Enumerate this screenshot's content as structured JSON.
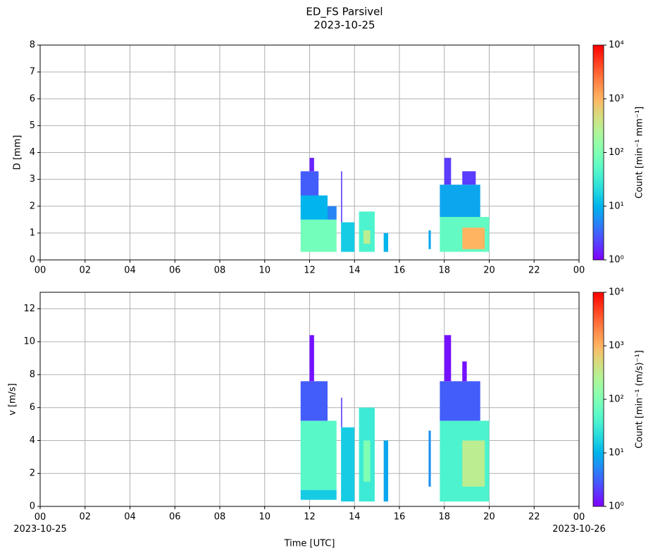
{
  "title": "ED_FS Parsivel",
  "subtitle": "2023-10-25",
  "chart_data": [
    {
      "type": "heatmap",
      "y_label": "D [mm]",
      "xlim": [
        0,
        24
      ],
      "ylim": [
        0,
        8
      ],
      "grid": true,
      "xticks": [
        {
          "value": 0,
          "label": "00"
        },
        {
          "value": 2,
          "label": "02"
        },
        {
          "value": 4,
          "label": "04"
        },
        {
          "value": 6,
          "label": "06"
        },
        {
          "value": 8,
          "label": "08"
        },
        10,
        12,
        14,
        16,
        18,
        20,
        22,
        {
          "value": 24,
          "label": "00"
        }
      ],
      "yticks": [
        0,
        1,
        2,
        3,
        4,
        5,
        6,
        7,
        8
      ],
      "colorscale": "log",
      "colormap": "rainbow",
      "clim": [
        1,
        10000
      ],
      "cticks": [
        {
          "value": 1,
          "label": "10⁰"
        },
        {
          "value": 10,
          "label": "10¹"
        },
        {
          "value": 100,
          "label": "10²"
        },
        {
          "value": 1000,
          "label": "10³"
        },
        {
          "value": 10000,
          "label": "10⁴"
        }
      ],
      "colorbar_label": "Count [min⁻¹ mm⁻¹]",
      "cells": [
        {
          "x": [
            11.6,
            13.2
          ],
          "y": [
            0.3,
            1.5
          ],
          "value": 80
        },
        {
          "x": [
            11.6,
            12.8
          ],
          "y": [
            1.5,
            2.4
          ],
          "value": 10
        },
        {
          "x": [
            11.6,
            12.4
          ],
          "y": [
            2.4,
            3.3
          ],
          "value": 3
        },
        {
          "x": [
            12.0,
            12.2
          ],
          "y": [
            3.3,
            3.8
          ],
          "value": 1.5
        },
        {
          "x": [
            12.8,
            13.2
          ],
          "y": [
            1.5,
            2.0
          ],
          "value": 5
        },
        {
          "x": [
            13.4,
            14.0
          ],
          "y": [
            0.3,
            1.4
          ],
          "value": 15
        },
        {
          "x": [
            13.4,
            13.45
          ],
          "y": [
            1.4,
            3.3
          ],
          "value": 2
        },
        {
          "x": [
            14.2,
            14.9
          ],
          "y": [
            0.3,
            1.8
          ],
          "value": 40
        },
        {
          "x": [
            14.4,
            14.7
          ],
          "y": [
            0.6,
            1.1
          ],
          "value": 300
        },
        {
          "x": [
            15.3,
            15.5
          ],
          "y": [
            0.3,
            1.0
          ],
          "value": 10
        },
        {
          "x": [
            17.3,
            17.4
          ],
          "y": [
            0.4,
            1.1
          ],
          "value": 8
        },
        {
          "x": [
            17.8,
            20.0
          ],
          "y": [
            0.3,
            1.6
          ],
          "value": 60
        },
        {
          "x": [
            18.8,
            19.8
          ],
          "y": [
            0.4,
            1.2
          ],
          "value": 1000
        },
        {
          "x": [
            17.8,
            19.6
          ],
          "y": [
            1.6,
            2.8
          ],
          "value": 8
        },
        {
          "x": [
            18.0,
            18.3
          ],
          "y": [
            2.8,
            3.8
          ],
          "value": 2
        },
        {
          "x": [
            18.8,
            19.4
          ],
          "y": [
            2.8,
            3.3
          ],
          "value": 2
        }
      ]
    },
    {
      "type": "heatmap",
      "y_label": "v [m/s]",
      "x_label": "Time [UTC]",
      "xlim": [
        0,
        24
      ],
      "ylim": [
        0,
        13
      ],
      "grid": true,
      "xticks": [
        {
          "value": 0,
          "label": "00\n2023-10-25"
        },
        {
          "value": 2,
          "label": "02"
        },
        {
          "value": 4,
          "label": "04"
        },
        {
          "value": 6,
          "label": "06"
        },
        {
          "value": 8,
          "label": "08"
        },
        10,
        12,
        14,
        16,
        18,
        20,
        22,
        {
          "value": 24,
          "label": "00\n2023-10-26"
        }
      ],
      "yticks": [
        0,
        2,
        4,
        6,
        8,
        10,
        12
      ],
      "colorscale": "log",
      "colormap": "rainbow",
      "clim": [
        1,
        10000
      ],
      "cticks": [
        {
          "value": 1,
          "label": "10⁰"
        },
        {
          "value": 10,
          "label": "10¹"
        },
        {
          "value": 100,
          "label": "10²"
        },
        {
          "value": 1000,
          "label": "10³"
        },
        {
          "value": 10000,
          "label": "10⁴"
        }
      ],
      "colorbar_label": "Count [min⁻¹ (m/s)⁻¹]",
      "cells": [
        {
          "x": [
            11.6,
            13.2
          ],
          "y": [
            0.4,
            1.0
          ],
          "value": 15
        },
        {
          "x": [
            11.6,
            13.2
          ],
          "y": [
            1.0,
            5.2
          ],
          "value": 50
        },
        {
          "x": [
            11.6,
            12.8
          ],
          "y": [
            5.2,
            7.6
          ],
          "value": 3
        },
        {
          "x": [
            12.0,
            12.2
          ],
          "y": [
            7.6,
            10.4
          ],
          "value": 1.2
        },
        {
          "x": [
            13.4,
            14.0
          ],
          "y": [
            0.3,
            4.8
          ],
          "value": 15
        },
        {
          "x": [
            13.4,
            13.45
          ],
          "y": [
            4.8,
            6.6
          ],
          "value": 2
        },
        {
          "x": [
            14.2,
            14.9
          ],
          "y": [
            0.3,
            6.0
          ],
          "value": 30
        },
        {
          "x": [
            14.4,
            14.7
          ],
          "y": [
            1.5,
            4.0
          ],
          "value": 100
        },
        {
          "x": [
            15.3,
            15.5
          ],
          "y": [
            0.3,
            4.0
          ],
          "value": 8
        },
        {
          "x": [
            17.3,
            17.4
          ],
          "y": [
            1.2,
            4.6
          ],
          "value": 6
        },
        {
          "x": [
            17.8,
            20.0
          ],
          "y": [
            0.3,
            5.2
          ],
          "value": 40
        },
        {
          "x": [
            18.8,
            19.8
          ],
          "y": [
            1.2,
            4.0
          ],
          "value": 300
        },
        {
          "x": [
            17.8,
            19.6
          ],
          "y": [
            5.2,
            7.6
          ],
          "value": 3
        },
        {
          "x": [
            18.0,
            18.3
          ],
          "y": [
            7.6,
            10.4
          ],
          "value": 1.2
        },
        {
          "x": [
            18.8,
            19.0
          ],
          "y": [
            7.6,
            8.8
          ],
          "value": 1.2
        }
      ]
    }
  ]
}
